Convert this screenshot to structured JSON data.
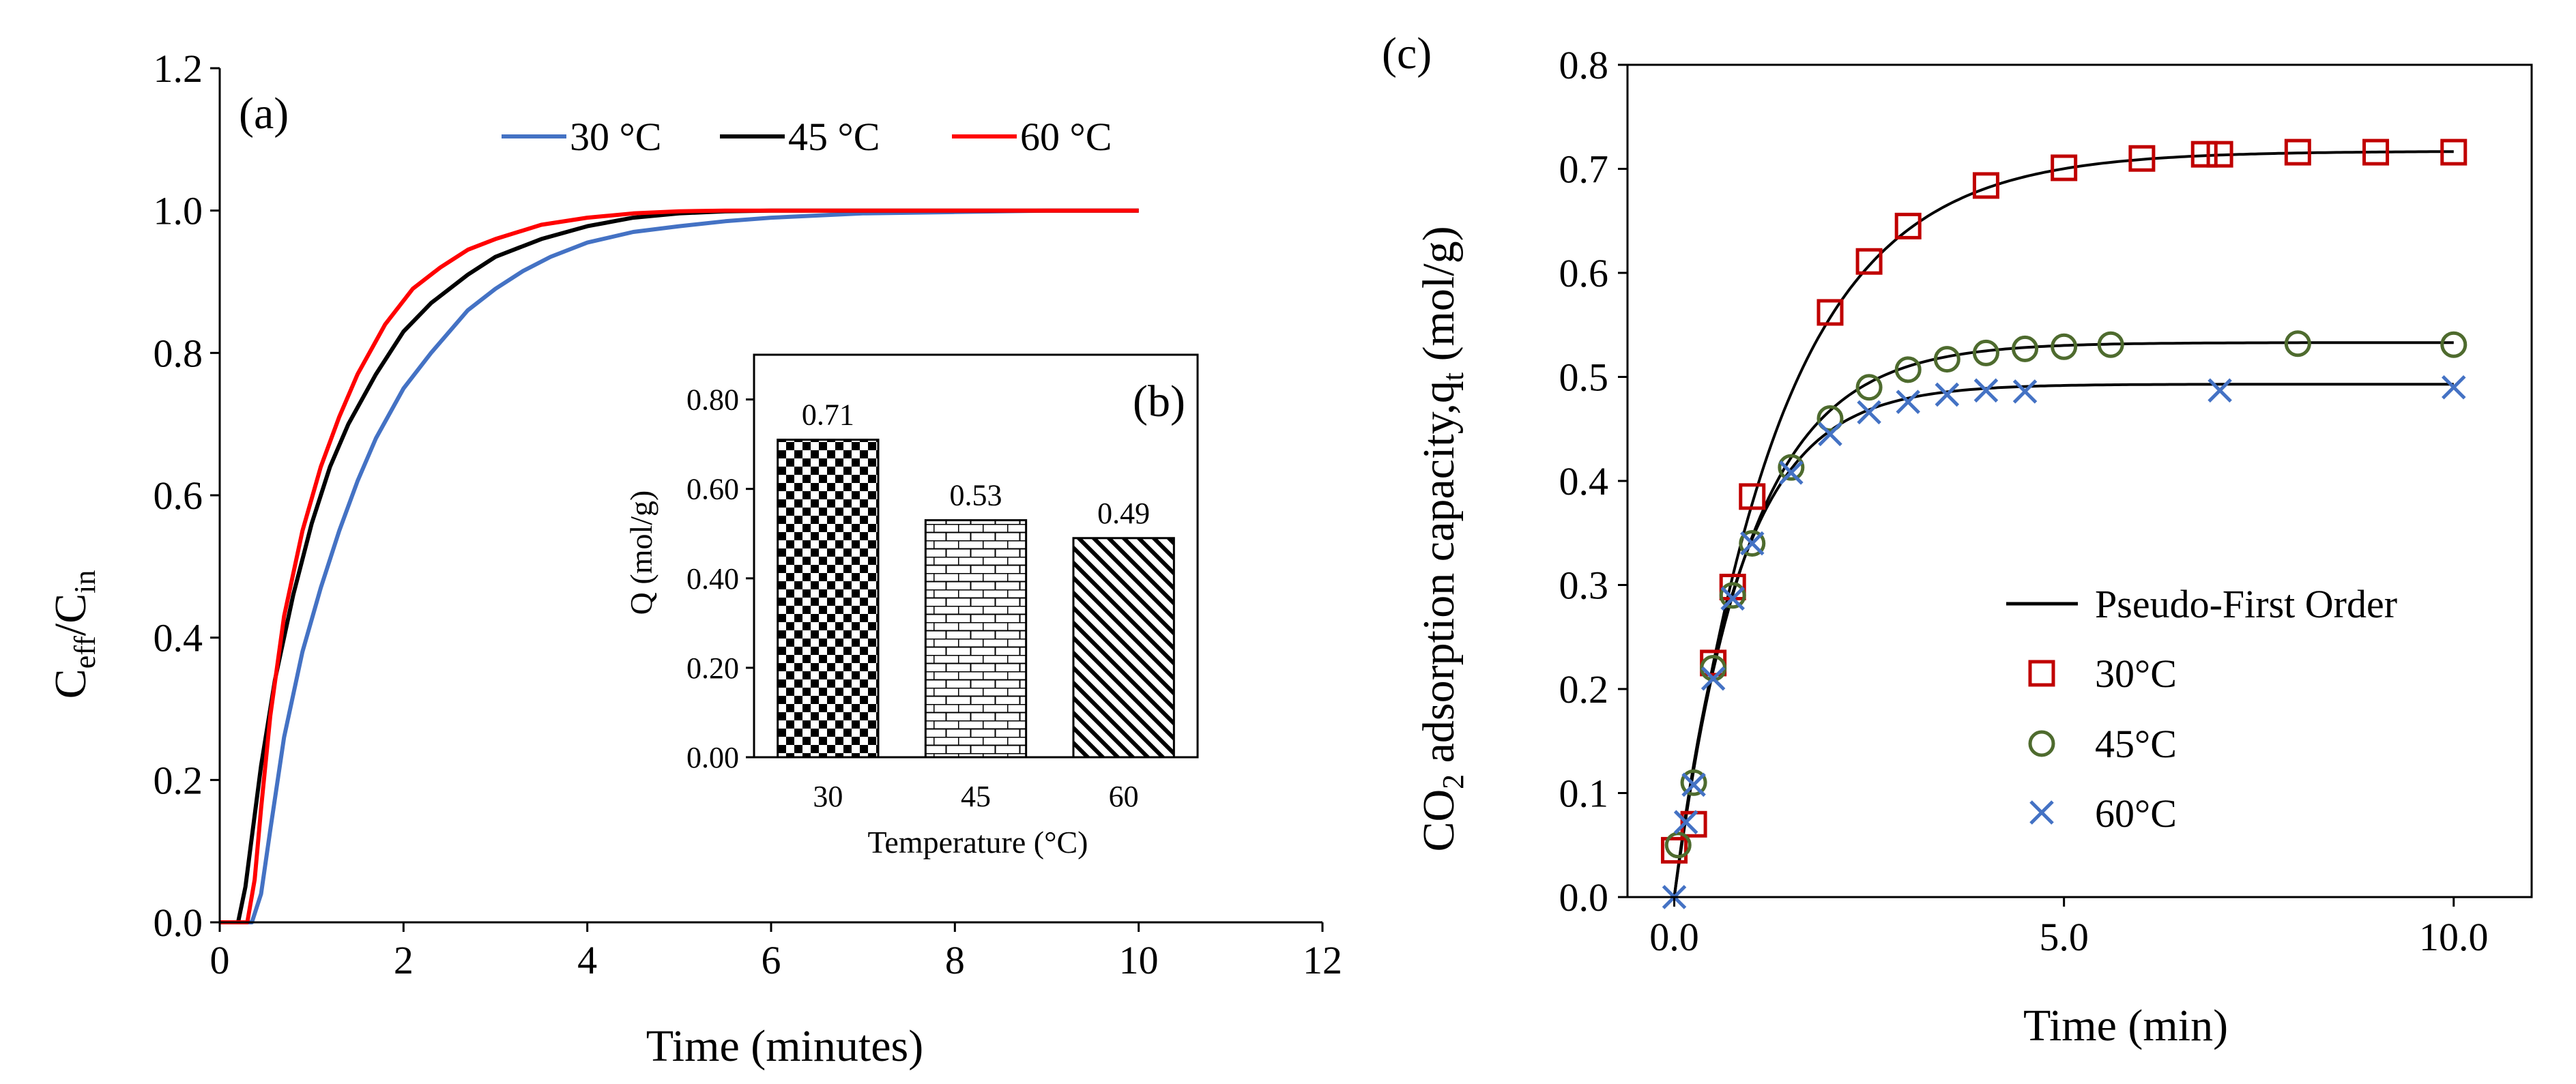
{
  "chart_data": [
    {
      "type": "line",
      "panel": "(a)",
      "xlabel": "Time (minutes)",
      "ylabel": {
        "main": "C",
        "sub1": "eff",
        "slash": "/C",
        "sub2": "in"
      },
      "xlim": [
        0,
        12
      ],
      "ylim": [
        0,
        1.2
      ],
      "xticks": [
        0,
        2,
        4,
        6,
        8,
        10,
        12
      ],
      "yticks": [
        0.0,
        0.2,
        0.4,
        0.6,
        0.8,
        1.0,
        1.2
      ],
      "xtick_labels": [
        "0",
        "2",
        "4",
        "6",
        "8",
        "10",
        "12"
      ],
      "ytick_labels": [
        "0.0",
        "0.2",
        "0.4",
        "0.6",
        "0.8",
        "1.0",
        "1.2"
      ],
      "legend_position": "top",
      "series": [
        {
          "name": "30 °C",
          "color": "#4472C4",
          "x": [
            0,
            0.35,
            0.45,
            0.55,
            0.7,
            0.9,
            1.1,
            1.3,
            1.5,
            1.7,
            2.0,
            2.3,
            2.7,
            3.0,
            3.3,
            3.6,
            4.0,
            4.5,
            5.0,
            5.5,
            6.0,
            7.0,
            8.0,
            9.0,
            10.0
          ],
          "y": [
            0,
            0,
            0.04,
            0.13,
            0.26,
            0.38,
            0.47,
            0.55,
            0.62,
            0.68,
            0.75,
            0.8,
            0.86,
            0.89,
            0.915,
            0.935,
            0.955,
            0.97,
            0.978,
            0.985,
            0.99,
            0.996,
            0.998,
            1.0,
            1.0
          ]
        },
        {
          "name": "45 °C",
          "color": "#000000",
          "x": [
            0,
            0.2,
            0.28,
            0.35,
            0.45,
            0.6,
            0.8,
            1.0,
            1.2,
            1.4,
            1.7,
            2.0,
            2.3,
            2.7,
            3.0,
            3.5,
            4.0,
            4.5,
            5.0,
            5.5,
            6.0,
            7.0,
            8.0,
            9.0,
            10.0
          ],
          "y": [
            0,
            0,
            0.05,
            0.12,
            0.22,
            0.34,
            0.46,
            0.56,
            0.64,
            0.7,
            0.77,
            0.83,
            0.87,
            0.91,
            0.935,
            0.96,
            0.978,
            0.99,
            0.996,
            0.999,
            1.0,
            1.0,
            1.0,
            1.0,
            1.0
          ]
        },
        {
          "name": "60 °C",
          "color": "#FF0000",
          "x": [
            0,
            0.3,
            0.38,
            0.45,
            0.55,
            0.7,
            0.9,
            1.1,
            1.3,
            1.5,
            1.8,
            2.1,
            2.4,
            2.7,
            3.0,
            3.5,
            4.0,
            4.5,
            5.0,
            5.5,
            6.0,
            7.0,
            8.0,
            9.0,
            10.0
          ],
          "y": [
            0,
            0,
            0.06,
            0.16,
            0.29,
            0.43,
            0.55,
            0.64,
            0.71,
            0.77,
            0.84,
            0.89,
            0.92,
            0.945,
            0.96,
            0.98,
            0.99,
            0.996,
            0.999,
            1.0,
            1.0,
            1.0,
            1.0,
            1.0,
            1.0
          ]
        }
      ]
    },
    {
      "type": "bar",
      "panel": "(b)",
      "xlabel": "Temperature (°C)",
      "ylabel": "Q (mol/g)",
      "categories": [
        "30",
        "45",
        "60"
      ],
      "values": [
        0.71,
        0.53,
        0.49
      ],
      "value_labels": [
        "0.71",
        "0.53",
        "0.49"
      ],
      "patterns": [
        "checker",
        "brick",
        "diagonal"
      ],
      "ylim": [
        0,
        0.9
      ],
      "yticks": [
        0.0,
        0.2,
        0.4,
        0.6,
        0.8
      ],
      "ytick_labels": [
        "0.00",
        "0.20",
        "0.40",
        "0.60",
        "0.80"
      ]
    },
    {
      "type": "scatter",
      "panel": "(c)",
      "xlabel": "Time (min)",
      "ylabel": {
        "pre": "CO",
        "sub": "2",
        "mid": " adsorption capacity,q",
        "sub2": "t",
        "post": " (mol/g)"
      },
      "xlim": [
        -0.6,
        11.0
      ],
      "ylim": [
        0,
        0.8
      ],
      "xticks": [
        0.0,
        5.0,
        10.0
      ],
      "yticks": [
        0.0,
        0.1,
        0.2,
        0.3,
        0.4,
        0.5,
        0.6,
        0.7,
        0.8
      ],
      "xtick_labels": [
        "0.0",
        "5.0",
        "10.0"
      ],
      "ytick_labels": [
        "0.0",
        "0.1",
        "0.2",
        "0.3",
        "0.4",
        "0.5",
        "0.6",
        "0.7",
        "0.8"
      ],
      "legend_position": "bottom-right",
      "fit_label": "Pseudo-First Order",
      "fits": [
        {
          "qe": 0.717,
          "k": 0.75
        },
        {
          "qe": 0.533,
          "k": 1.05
        },
        {
          "qe": 0.493,
          "k": 1.2
        }
      ],
      "series": [
        {
          "name": "30°C",
          "marker": "square",
          "color": "#C00000",
          "x": [
            0.0,
            0.25,
            0.5,
            0.75,
            1.0,
            2.0,
            2.5,
            3.0,
            4.0,
            5.0,
            6.0,
            6.8,
            7.0,
            8.0,
            9.0,
            10.0
          ],
          "y": [
            0.045,
            0.07,
            0.225,
            0.298,
            0.385,
            0.562,
            0.611,
            0.645,
            0.684,
            0.701,
            0.71,
            0.714,
            0.714,
            0.716,
            0.716,
            0.716
          ]
        },
        {
          "name": "45°C",
          "marker": "circle",
          "color": "#4E6B2E",
          "x": [
            0.05,
            0.25,
            0.5,
            0.75,
            1.0,
            1.5,
            2.0,
            2.5,
            3.0,
            3.5,
            4.0,
            4.5,
            5.0,
            5.6,
            8.0,
            10.0
          ],
          "y": [
            0.05,
            0.11,
            0.22,
            0.29,
            0.34,
            0.413,
            0.46,
            0.49,
            0.507,
            0.517,
            0.523,
            0.527,
            0.529,
            0.531,
            0.532,
            0.531
          ]
        },
        {
          "name": "60°C",
          "marker": "x",
          "color": "#4472C4",
          "x": [
            0.0,
            0.15,
            0.25,
            0.5,
            0.75,
            1.0,
            1.5,
            2.0,
            2.5,
            3.0,
            3.5,
            4.0,
            4.5,
            7.0,
            10.0
          ],
          "y": [
            0.0,
            0.072,
            0.108,
            0.21,
            0.287,
            0.34,
            0.408,
            0.445,
            0.466,
            0.476,
            0.483,
            0.487,
            0.486,
            0.487,
            0.49
          ]
        }
      ]
    }
  ]
}
